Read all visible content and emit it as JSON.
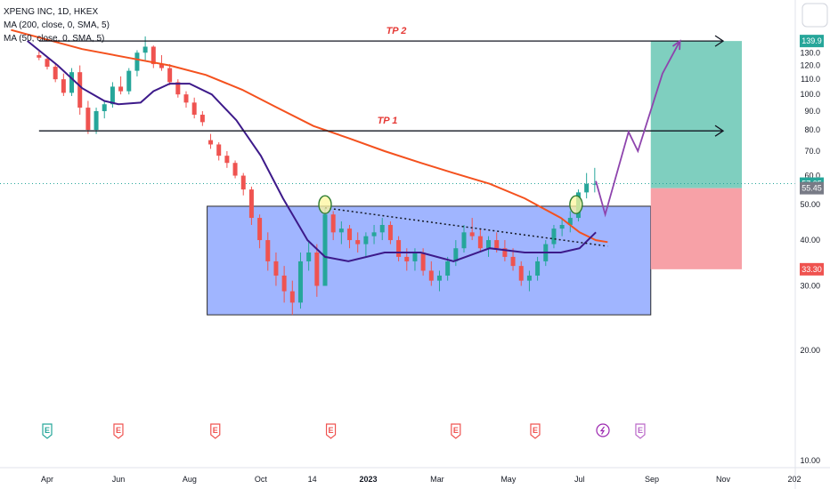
{
  "header": {
    "title": "XPENG INC, 1D, HKEX",
    "indicators": [
      "MA (200, close, 0, SMA, 5)",
      "MA (50, close, 0, SMA, 5)"
    ]
  },
  "chart_data": {
    "type": "candlestick",
    "symbol": "XPENG INC",
    "interval": "1D",
    "exchange": "HKEX",
    "y_axis": {
      "ticks": [
        140.0,
        130.0,
        120.0,
        110.0,
        100.0,
        90.0,
        80.0,
        70.0,
        60.0,
        50.0,
        40.0,
        30.0,
        20.0,
        10.0
      ],
      "labels": [
        "",
        "130.0",
        "120.0",
        "110.0",
        "100.0",
        "90.0",
        "80.0",
        "70.0",
        "60.0",
        "50.00",
        "40.00",
        "30.00",
        "20.00",
        "10.00"
      ],
      "range": [
        7,
        150
      ]
    },
    "x_axis": {
      "labels": [
        {
          "label": "Apr",
          "date": "2022-04-01"
        },
        {
          "label": "Jun",
          "date": "2022-06-01"
        },
        {
          "label": "Aug",
          "date": "2022-08-01"
        },
        {
          "label": "Oct",
          "date": "2022-10-01"
        },
        {
          "label": "14",
          "date": "2022-11-14"
        },
        {
          "label": "2023",
          "date": "2023-01-01"
        },
        {
          "label": "Mar",
          "date": "2023-03-01"
        },
        {
          "label": "May",
          "date": "2023-05-01"
        },
        {
          "label": "Jul",
          "date": "2023-07-01"
        },
        {
          "label": "Sep",
          "date": "2023-09-01"
        },
        {
          "label": "Nov",
          "date": "2023-11-01"
        },
        {
          "label": "202",
          "date": "2024-01-01"
        }
      ]
    },
    "price_tags": [
      {
        "value": 139.9,
        "label": "139.9",
        "color": "#26a69a"
      },
      {
        "value": 57.05,
        "label": "57.05",
        "color": "#26a69a"
      },
      {
        "value": 55.45,
        "label": "55.45",
        "color": "#787b86"
      },
      {
        "value": 33.3,
        "label": "33.30",
        "color": "#ef5350"
      }
    ],
    "targets": [
      {
        "name": "TP 2",
        "price": 139.9,
        "from": "2022-03-25",
        "to": "2023-11-01"
      },
      {
        "name": "TP 1",
        "price": 79.5,
        "from": "2022-03-25",
        "to": "2023-11-01"
      }
    ],
    "range_box": {
      "price_top": 49.5,
      "price_bottom": 25.0,
      "from": "2022-08-16",
      "to": "2023-08-31",
      "fill": "#8fa8ff",
      "stroke": "#2b2b2b"
    },
    "position": {
      "entry": 55.45,
      "target": 139.9,
      "stop": 33.3,
      "from": "2023-08-31",
      "to": "2023-11-17",
      "profit_color": "#7fcfbf",
      "loss_color": "#f7a1a7"
    },
    "current_price": 57.05,
    "ma200": [
      [
        "2022-03-01",
        150
      ],
      [
        "2022-05-01",
        133
      ],
      [
        "2022-06-15",
        125
      ],
      [
        "2022-07-15",
        120
      ],
      [
        "2022-08-15",
        113
      ],
      [
        "2022-09-15",
        103
      ],
      [
        "2022-10-15",
        92
      ],
      [
        "2022-11-15",
        82
      ],
      [
        "2022-12-15",
        76
      ],
      [
        "2023-01-15",
        70
      ],
      [
        "2023-02-15",
        65
      ],
      [
        "2023-03-15",
        61
      ],
      [
        "2023-04-15",
        57
      ],
      [
        "2023-05-15",
        52
      ],
      [
        "2023-06-15",
        46
      ],
      [
        "2023-07-01",
        42
      ],
      [
        "2023-07-15",
        40
      ],
      [
        "2023-07-25",
        39.5
      ]
    ],
    "ma50": [
      [
        "2022-03-15",
        140
      ],
      [
        "2022-04-10",
        120
      ],
      [
        "2022-05-01",
        104
      ],
      [
        "2022-05-20",
        96
      ],
      [
        "2022-06-01",
        94
      ],
      [
        "2022-06-20",
        95
      ],
      [
        "2022-07-01",
        102
      ],
      [
        "2022-07-15",
        107
      ],
      [
        "2022-08-01",
        107
      ],
      [
        "2022-08-20",
        100
      ],
      [
        "2022-09-10",
        85
      ],
      [
        "2022-10-01",
        68
      ],
      [
        "2022-10-20",
        52
      ],
      [
        "2022-11-10",
        40
      ],
      [
        "2022-11-25",
        36
      ],
      [
        "2022-12-15",
        35
      ],
      [
        "2023-01-15",
        37
      ],
      [
        "2023-02-15",
        37
      ],
      [
        "2023-03-15",
        35
      ],
      [
        "2023-04-15",
        38
      ],
      [
        "2023-05-15",
        37
      ],
      [
        "2023-06-15",
        37
      ],
      [
        "2023-07-01",
        38
      ],
      [
        "2023-07-15",
        42
      ]
    ],
    "trendline": {
      "from": [
        "2022-11-25",
        49
      ],
      "to": [
        "2023-07-25",
        38.5
      ],
      "style": "dotted"
    },
    "projection": [
      [
        "2023-07-15",
        58
      ],
      [
        "2023-07-23",
        47
      ],
      [
        "2023-08-12",
        79
      ],
      [
        "2023-08-20",
        70
      ],
      [
        "2023-09-10",
        114
      ],
      [
        "2023-09-25",
        139.9
      ]
    ],
    "circles": [
      [
        "2022-11-25",
        50
      ],
      [
        "2023-06-28",
        50
      ]
    ],
    "earnings": [
      {
        "date": "2022-04-01",
        "label": "E",
        "color": "#26a69a"
      },
      {
        "date": "2022-06-01",
        "label": "E",
        "color": "#ef5350"
      },
      {
        "date": "2022-08-23",
        "label": "E",
        "color": "#ef5350"
      },
      {
        "date": "2022-11-30",
        "label": "E",
        "color": "#ef5350"
      },
      {
        "date": "2023-03-17",
        "label": "E",
        "color": "#ef5350"
      },
      {
        "date": "2023-05-24",
        "label": "E",
        "color": "#ef5350"
      },
      {
        "date": "2023-07-21",
        "label": "",
        "color": "#9c27b0"
      },
      {
        "date": "2023-08-22",
        "label": "E",
        "color": "#ba68c8"
      }
    ],
    "candles": [
      [
        "2022-03-25",
        128,
        131,
        124,
        126
      ],
      [
        "2022-04-01",
        125,
        126,
        117,
        119
      ],
      [
        "2022-04-08",
        119,
        122,
        108,
        110
      ],
      [
        "2022-04-15",
        110,
        114,
        99,
        101
      ],
      [
        "2022-04-22",
        101,
        118,
        99,
        115
      ],
      [
        "2022-04-29",
        115,
        120,
        88,
        92
      ],
      [
        "2022-05-06",
        92,
        96,
        78,
        80
      ],
      [
        "2022-05-13",
        80,
        92,
        78,
        90
      ],
      [
        "2022-05-20",
        90,
        96,
        86,
        94
      ],
      [
        "2022-05-27",
        94,
        108,
        92,
        105
      ],
      [
        "2022-06-03",
        105,
        112,
        100,
        102
      ],
      [
        "2022-06-10",
        102,
        118,
        100,
        116
      ],
      [
        "2022-06-17",
        116,
        132,
        112,
        130
      ],
      [
        "2022-06-24",
        130,
        144,
        124,
        135
      ],
      [
        "2022-07-01",
        135,
        136,
        118,
        121
      ],
      [
        "2022-07-08",
        121,
        128,
        116,
        118
      ],
      [
        "2022-07-15",
        118,
        121,
        106,
        108
      ],
      [
        "2022-07-22",
        108,
        110,
        98,
        100
      ],
      [
        "2022-07-29",
        100,
        102,
        92,
        95
      ],
      [
        "2022-08-05",
        95,
        98,
        86,
        88
      ],
      [
        "2022-08-12",
        88,
        90,
        82,
        84
      ],
      [
        "2022-08-19",
        75,
        78,
        71,
        73
      ],
      [
        "2022-08-26",
        73,
        74,
        66,
        68
      ],
      [
        "2022-09-02",
        68,
        70,
        63,
        65
      ],
      [
        "2022-09-09",
        65,
        66,
        59,
        60
      ],
      [
        "2022-09-16",
        60,
        61,
        53,
        55
      ],
      [
        "2022-09-23",
        55,
        56,
        44,
        46
      ],
      [
        "2022-09-30",
        46,
        47,
        38,
        40
      ],
      [
        "2022-10-07",
        40,
        42,
        33,
        35
      ],
      [
        "2022-10-14",
        35,
        37,
        30,
        32
      ],
      [
        "2022-10-21",
        32,
        34,
        27,
        29
      ],
      [
        "2022-10-28",
        29,
        31,
        25,
        27
      ],
      [
        "2022-11-04",
        27,
        37,
        26,
        35
      ],
      [
        "2022-11-11",
        35,
        40,
        33,
        37
      ],
      [
        "2022-11-18",
        37,
        39,
        28,
        30
      ],
      [
        "2022-11-25",
        30,
        49,
        30,
        47
      ],
      [
        "2022-12-02",
        47,
        48,
        40,
        42
      ],
      [
        "2022-12-09",
        42,
        45,
        39,
        43
      ],
      [
        "2022-12-16",
        43,
        44,
        38,
        40
      ],
      [
        "2022-12-23",
        40,
        42,
        37,
        39
      ],
      [
        "2022-12-30",
        39,
        42,
        36,
        41
      ],
      [
        "2023-01-06",
        41,
        44,
        39,
        42
      ],
      [
        "2023-01-13",
        42,
        46,
        40,
        44
      ],
      [
        "2023-01-20",
        44,
        45,
        39,
        40
      ],
      [
        "2023-01-27",
        40,
        41,
        35,
        36
      ],
      [
        "2023-02-03",
        36,
        38,
        33,
        35
      ],
      [
        "2023-02-10",
        35,
        38,
        33,
        37
      ],
      [
        "2023-02-17",
        37,
        38,
        32,
        33
      ],
      [
        "2023-02-24",
        33,
        35,
        30,
        31
      ],
      [
        "2023-03-03",
        31,
        33,
        29,
        32
      ],
      [
        "2023-03-10",
        32,
        36,
        31,
        35
      ],
      [
        "2023-03-17",
        35,
        40,
        34,
        38
      ],
      [
        "2023-03-24",
        38,
        44,
        37,
        42
      ],
      [
        "2023-03-31",
        42,
        46,
        40,
        41
      ],
      [
        "2023-04-07",
        41,
        43,
        37,
        38
      ],
      [
        "2023-04-14",
        38,
        41,
        36,
        40
      ],
      [
        "2023-04-21",
        40,
        42,
        37,
        38
      ],
      [
        "2023-04-28",
        38,
        40,
        35,
        36
      ],
      [
        "2023-05-05",
        36,
        38,
        33,
        34
      ],
      [
        "2023-05-12",
        34,
        35,
        30,
        31
      ],
      [
        "2023-05-19",
        31,
        33,
        29,
        32
      ],
      [
        "2023-05-26",
        32,
        36,
        31,
        35
      ],
      [
        "2023-06-02",
        35,
        40,
        34,
        39
      ],
      [
        "2023-06-09",
        39,
        44,
        38,
        43
      ],
      [
        "2023-06-16",
        43,
        46,
        41,
        44
      ],
      [
        "2023-06-23",
        44,
        48,
        42,
        46
      ],
      [
        "2023-06-30",
        46,
        55,
        45,
        54
      ],
      [
        "2023-07-07",
        54,
        61,
        52,
        57
      ],
      [
        "2023-07-14",
        57,
        63,
        54,
        57
      ]
    ]
  }
}
